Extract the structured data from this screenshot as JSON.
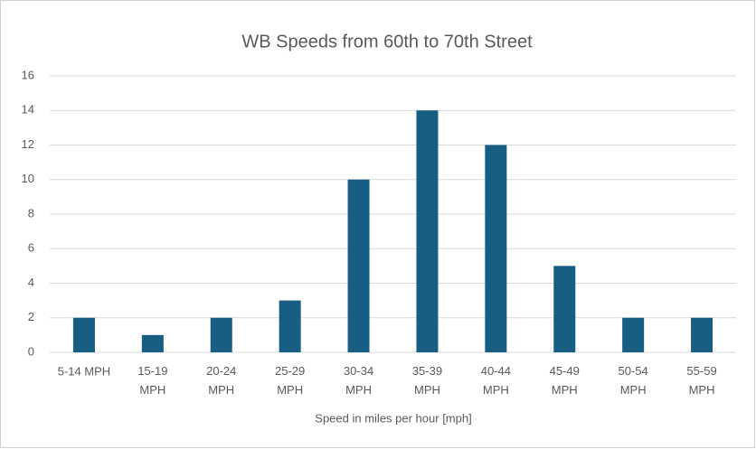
{
  "chart_data": {
    "type": "bar",
    "title": "WB Speeds from 60th to 70th Street",
    "x_label": "Speed in miles per hour [mph]",
    "categories": [
      "5-14 MPH",
      "15-19 MPH",
      "20-24 MPH",
      "25-29 MPH",
      "30-34 MPH",
      "35-39 MPH",
      "40-44 MPH",
      "45-49 MPH",
      "50-54 MPH",
      "55-59 MPH"
    ],
    "values": [
      2,
      1,
      2,
      3,
      10,
      14,
      12,
      5,
      2,
      2
    ],
    "color": "#175e82",
    "ylim": [
      0,
      16
    ],
    "yticks": [
      0,
      2,
      4,
      6,
      8,
      10,
      12,
      14,
      16
    ],
    "grid": true
  }
}
